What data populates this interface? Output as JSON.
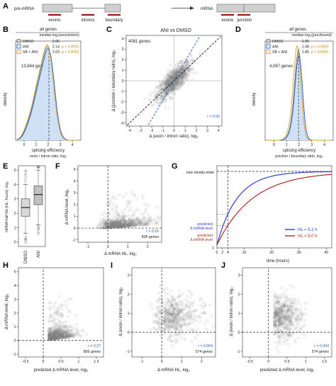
{
  "panels": {
    "A": {
      "label": "A",
      "pre_mrna": "pre-mRNA",
      "mrna": "mRNA",
      "exonic": "exonic",
      "intronic": "intronic",
      "boundary": "boundary",
      "exonic2": "exonic",
      "junction": "junction"
    },
    "B": {
      "label": "B",
      "title": "all genes",
      "subtitle": "median log₂(exon/intron)",
      "legend": [
        {
          "name": "DMSO",
          "value": "2.06",
          "p": "",
          "color": "#777777"
        },
        {
          "name": "ANI",
          "value": "2.14",
          "p": "p < 0.0001",
          "color": "#2a5cc4"
        },
        {
          "name": "SB + ANI",
          "value": "2.03",
          "p": "p < 0.0001",
          "color": "#d7a12a"
        }
      ],
      "ylabel": "density",
      "xlabel": "splicing efficiency",
      "xlabel2": "exon / intron ratio, log₂",
      "genes": "13,844 genes",
      "xticks": [
        "0",
        "1",
        "2",
        "3",
        "4"
      ]
    },
    "C": {
      "label": "C",
      "title": "ANI vs DMSO",
      "genes": "4081 genes",
      "r": "r = 0.56",
      "ylabel": "Δ (junction / boundary ratio), log₂",
      "xlabel": "Δ (exon / intron ratio), log₂",
      "xticks": [
        "-4",
        "-3",
        "-2",
        "-1",
        "0",
        "1",
        "2",
        "3",
        "4"
      ],
      "yticks": [
        "-4",
        "-3",
        "-2",
        "-1",
        "0",
        "1",
        "2",
        "3",
        "4"
      ]
    },
    "D": {
      "label": "D",
      "title": "all genes",
      "subtitle": "median log₂(junc/bound)",
      "legend": [
        {
          "name": "DMSO",
          "value": "1.95",
          "p": "",
          "color": "#777777"
        },
        {
          "name": "ANI",
          "value": "1.98",
          "p": "p < 0.0001",
          "color": "#2a5cc4"
        },
        {
          "name": "SB + ANI",
          "value": "1.85",
          "p": "p < 0.0001",
          "color": "#d7a12a"
        }
      ],
      "ylabel": "density",
      "xlabel": "splicing efficiency",
      "xlabel2": "junction / boundary ratio, log₂",
      "genes": "4,067 genes",
      "xticks": [
        "0",
        "1",
        "2",
        "3",
        "4"
      ]
    },
    "E": {
      "label": "E",
      "ylabel": "mRNA half-life (HL, hours), log₂",
      "yticks": [
        "0",
        "1",
        "2",
        "3",
        "4",
        "5"
      ],
      "categories": [
        "DMSO",
        "ANI"
      ],
      "box": [
        {
          "q1": 1.8,
          "median": 2.4,
          "q3": 3.0,
          "lo": 0.6,
          "hi": 4.0
        },
        {
          "q1": 2.6,
          "median": 3.3,
          "q3": 3.9,
          "lo": 1.2,
          "hi": 5.0
        }
      ]
    },
    "F": {
      "label": "F",
      "ylabel": "Δ mRNA level, log₂",
      "xlabel": "Δ mRNA HL, log₂",
      "r": "r = 0.16",
      "genes": "806 genes",
      "xticks": [
        "-1",
        "0",
        "1",
        "2"
      ],
      "yticks": [
        "-1",
        "0",
        "1",
        "2",
        "3",
        "4",
        "5"
      ]
    },
    "G": {
      "label": "G",
      "steady": "new steady-state",
      "pred_blue": "predicted Δ mRNA level",
      "pred_red": "predicted Δ mRNA level",
      "xlabel": "time (hours)",
      "xticks": [
        "0",
        "2",
        "4",
        "10",
        "20",
        "30",
        "40"
      ],
      "yone": "1",
      "series": [
        {
          "name": "HL = 5.1 h",
          "color": "#2a3fcf",
          "hl": 5.1
        },
        {
          "name": "HL = 9.0 h",
          "color": "#b22a2a",
          "hl": 9.0
        }
      ]
    },
    "H": {
      "label": "H",
      "ylabel": "Δ mRNA level, log₂",
      "xlabel": "predicted Δ mRNA level, log₂",
      "r": "r = 0.27",
      "genes": "806 genes",
      "xticks": [
        "-0.5",
        "0",
        "0.5",
        "1",
        "1.5"
      ],
      "yticks": [
        "-1",
        "0",
        "1",
        "2",
        "3",
        "4",
        "5"
      ]
    },
    "I": {
      "label": "I",
      "ylabel": "Δ (exon / intron ratio), log₂",
      "xlabel": "Δ mRNA HL, log₂",
      "r": "r = 0.004",
      "genes": "574 genes",
      "xticks": [
        "-1",
        "0",
        "1",
        "2"
      ],
      "yticks": [
        "-1",
        "0",
        "1",
        "2",
        "3"
      ]
    },
    "J": {
      "label": "J",
      "ylabel": "Δ (exon / intron ratio), log₂",
      "xlabel": "predicted Δ mRNA level, log₂",
      "r": "r = 0.004",
      "genes": "574 genes",
      "xticks": [
        "-0.5",
        "0",
        "0.5",
        "1",
        "1.5"
      ],
      "yticks": [
        "-1",
        "0",
        "1",
        "2",
        "3"
      ]
    }
  }
}
